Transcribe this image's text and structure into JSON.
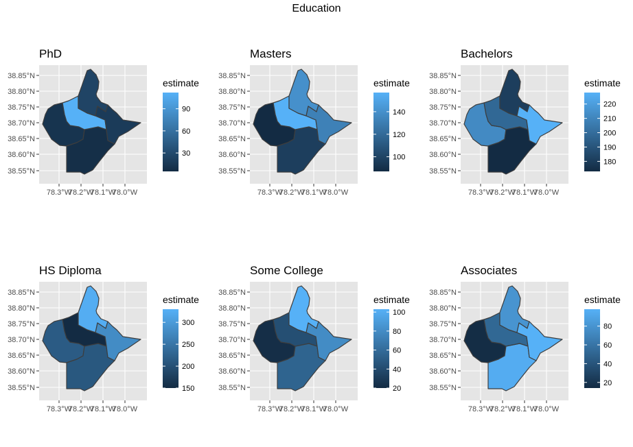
{
  "figure_title": "Education",
  "chart_data": [
    {
      "type": "choropleth",
      "title": "PhD",
      "legend_title": "estimate",
      "legend_ticks": [
        30,
        60,
        90
      ],
      "range": [
        5,
        112
      ],
      "regions": {
        "north": 25,
        "center": 112,
        "east": 18,
        "west": 12,
        "south": 8
      },
      "x_ticks": [
        "78.3°W",
        "78.2°W",
        "78.1°W",
        "78.0°W"
      ],
      "y_ticks": [
        "38.85°N",
        "38.80°N",
        "38.75°N",
        "38.70°N",
        "38.65°N",
        "38.60°N",
        "38.55°N"
      ]
    },
    {
      "type": "choropleth",
      "title": "Masters",
      "legend_title": "estimate",
      "legend_ticks": [
        100,
        120,
        140
      ],
      "range": [
        87,
        157
      ],
      "regions": {
        "north": 140,
        "center": 157,
        "east": 132,
        "west": 87,
        "south": 97
      },
      "x_ticks": [
        "78.3°W",
        "78.2°W",
        "78.1°W",
        "78.0°W"
      ],
      "y_ticks": [
        "38.85°N",
        "38.80°N",
        "38.75°N",
        "38.70°N",
        "38.65°N",
        "38.60°N",
        "38.55°N"
      ]
    },
    {
      "type": "choropleth",
      "title": "Bachelors",
      "legend_title": "estimate",
      "legend_ticks": [
        180,
        190,
        200,
        210,
        220
      ],
      "range": [
        173,
        228
      ],
      "regions": {
        "north": 181,
        "center": 198,
        "east": 228,
        "west": 212,
        "south": 173
      },
      "x_ticks": [
        "78.3°W",
        "78.2°W",
        "78.1°W",
        "78.0°W"
      ],
      "y_ticks": [
        "38.85°N",
        "38.80°N",
        "38.75°N",
        "38.70°N",
        "38.65°N",
        "38.60°N",
        "38.55°N"
      ]
    },
    {
      "type": "choropleth",
      "title": "HS Diploma",
      "legend_title": "estimate",
      "legend_ticks": [
        150,
        200,
        250,
        300
      ],
      "range": [
        150,
        330
      ],
      "regions": {
        "north": 325,
        "center": 150,
        "east": 280,
        "west": 215,
        "south": 210
      },
      "x_ticks": [
        "78.3°W",
        "78.2°W",
        "78.1°W",
        "78.0°W"
      ],
      "y_ticks": [
        "38.85°N",
        "38.80°N",
        "38.75°N",
        "38.70°N",
        "38.65°N",
        "38.60°N",
        "38.55°N"
      ]
    },
    {
      "type": "choropleth",
      "title": "Some College",
      "legend_title": "estimate",
      "legend_ticks": [
        20,
        40,
        60,
        80,
        100
      ],
      "range": [
        20,
        103
      ],
      "regions": {
        "north": 103,
        "center": 42,
        "east": 80,
        "west": 22,
        "south": 55
      },
      "x_ticks": [
        "78.3°W",
        "78.2°W",
        "78.1°W",
        "78.0°W"
      ],
      "y_ticks": [
        "38.85°N",
        "38.80°N",
        "38.75°N",
        "38.70°N",
        "38.65°N",
        "38.60°N",
        "38.55°N"
      ]
    },
    {
      "type": "choropleth",
      "title": "Associates",
      "legend_title": "estimate",
      "legend_ticks": [
        20,
        40,
        60,
        80
      ],
      "range": [
        14,
        98
      ],
      "regions": {
        "north": 80,
        "center": 52,
        "east": 98,
        "west": 15,
        "south": 95
      },
      "x_ticks": [
        "78.3°W",
        "78.2°W",
        "78.1°W",
        "78.0°W"
      ],
      "y_ticks": [
        "38.85°N",
        "38.80°N",
        "38.75°N",
        "38.70°N",
        "38.65°N",
        "38.60°N",
        "38.55°N"
      ]
    }
  ],
  "colors": {
    "low": "#132B43",
    "high": "#56B1F7",
    "panel": "#e5e5e5",
    "border": "#3d3d3d"
  }
}
